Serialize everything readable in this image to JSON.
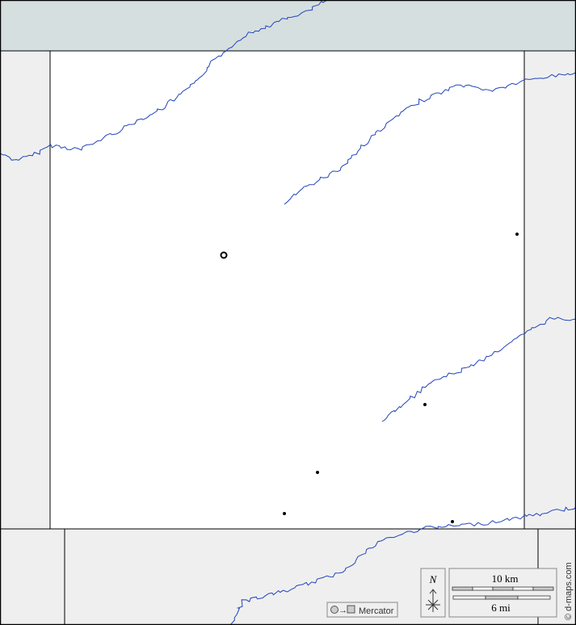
{
  "map": {
    "colors": {
      "water": "#d6dfdf",
      "neighbor": "#efefef",
      "main": "#ffffff",
      "river": "#2244bb",
      "border": "#000000"
    },
    "projection_label": "Mercator",
    "north_label": "N",
    "scale_km_label": "10 km",
    "scale_mi_label": "6 mi",
    "watermark": "© d-maps.com",
    "icons": [
      "circle-to-square-projection-icon",
      "north-arrow-icon",
      "city-capital-icon",
      "town-dot-icon"
    ]
  }
}
